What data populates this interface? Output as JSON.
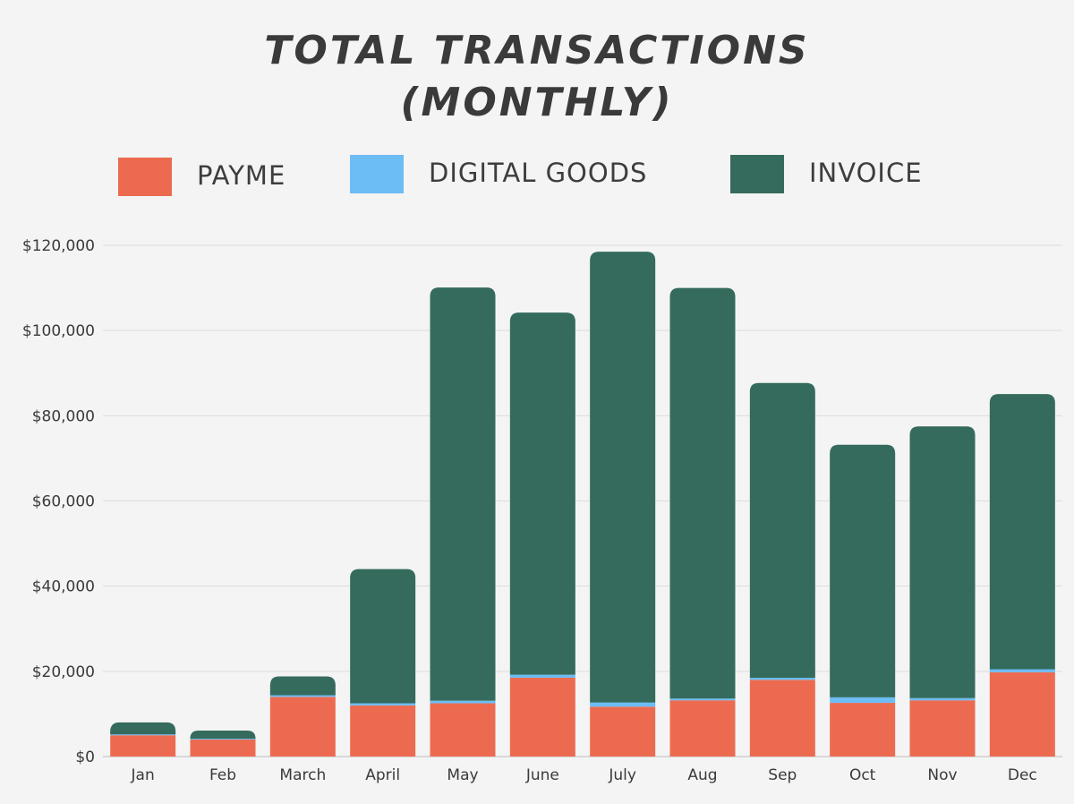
{
  "chart_data": {
    "type": "bar",
    "stacked": true,
    "title_lines": [
      "TOTAL TRANSACTIONS",
      "(MONTHLY)"
    ],
    "categories": [
      "Jan",
      "Feb",
      "March",
      "April",
      "May",
      "June",
      "July",
      "Aug",
      "Sep",
      "Oct",
      "Nov",
      "Dec"
    ],
    "series": [
      {
        "name": "PAYME",
        "color": "#ec6b50",
        "values": [
          5000,
          4000,
          14000,
          12000,
          12500,
          18500,
          11700,
          13200,
          18000,
          12600,
          13200,
          19800
        ]
      },
      {
        "name": "DIGITAL GOODS",
        "color": "#6cbcf5",
        "values": [
          200,
          200,
          400,
          500,
          600,
          700,
          1000,
          400,
          500,
          1300,
          500,
          700
        ]
      },
      {
        "name": "INVOICE",
        "color": "#356b5c",
        "values": [
          2800,
          1900,
          4400,
          31500,
          97000,
          85000,
          105800,
          96400,
          69200,
          59300,
          63800,
          64600
        ]
      }
    ],
    "ylim": [
      0,
      120000
    ],
    "yticks": [
      0,
      20000,
      40000,
      60000,
      80000,
      100000,
      120000
    ],
    "ytick_labels": [
      "$0",
      "$20,000",
      "$40,000",
      "$60,000",
      "$80,000",
      "$100,000",
      "$120,000"
    ],
    "grid": true,
    "legend_position": "top"
  }
}
